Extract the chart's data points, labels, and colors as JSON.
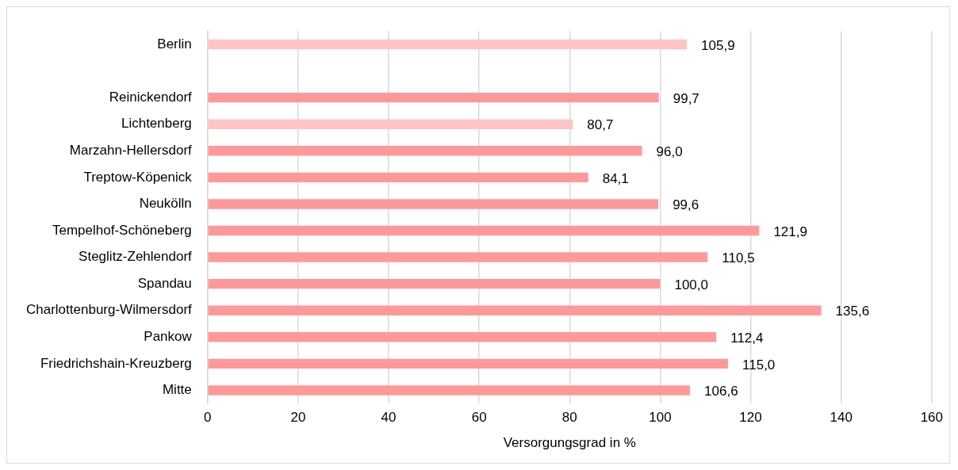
{
  "chart_data": {
    "type": "bar",
    "orientation": "horizontal",
    "xlabel": "Versorgungsgrad in %",
    "categories": [
      "Berlin",
      null,
      "Reinickendorf",
      "Lichtenberg",
      "Marzahn-Hellersdorf",
      "Treptow-Köpenick",
      "Neukölln",
      "Tempelhof-Schöneberg",
      "Steglitz-Zehlendorf",
      "Spandau",
      "Charlottenburg-Wilmersdorf",
      "Pankow",
      "Friedrichshain-Kreuzberg",
      "Mitte"
    ],
    "values": [
      105.9,
      null,
      99.7,
      80.7,
      96.0,
      84.1,
      99.6,
      121.9,
      110.5,
      100.0,
      135.6,
      112.4,
      115.0,
      106.6
    ],
    "value_labels": [
      "105,9",
      null,
      "99,7",
      "80,7",
      "96,0",
      "84,1",
      "99,6",
      "121,9",
      "110,5",
      "100,0",
      "135,6",
      "112,4",
      "115,0",
      "106,6"
    ],
    "colors": [
      "#ffc4c4",
      "#ff9999",
      "#ff9999",
      "#ffc4c4",
      "#ff9999",
      "#ff9999",
      "#ff9999",
      "#ff9999",
      "#ff9999",
      "#ff9999",
      "#ff9999",
      "#ff9999",
      "#ff9999",
      "#ff9999"
    ],
    "xlim": [
      0,
      160
    ],
    "xticks": [
      0,
      20,
      40,
      60,
      80,
      100,
      120,
      140,
      160
    ],
    "grid": "x",
    "legend": false
  }
}
